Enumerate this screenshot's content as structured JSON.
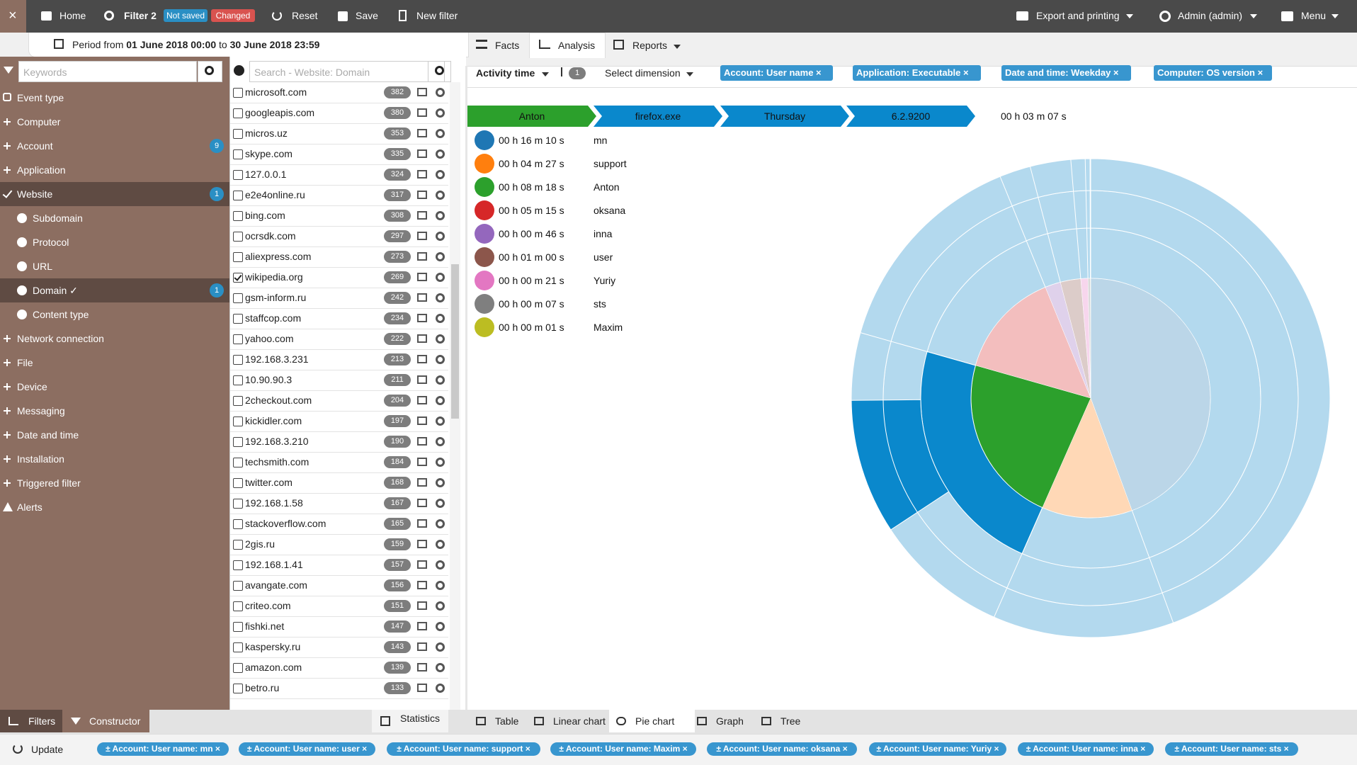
{
  "topbar": {
    "close": "×",
    "home": "Home",
    "filter": "Filter 2",
    "not_saved": "Not saved",
    "changed": "Changed",
    "reset": "Reset",
    "save": "Save",
    "new_filter": "New filter",
    "export": "Export and printing",
    "admin": "Admin (admin)",
    "menu": "Menu"
  },
  "period": {
    "prefix": "Period from",
    "from": "01 June 2018 00:00",
    "to_word": "to",
    "to": "30 June 2018 23:59"
  },
  "tabs": [
    "Facts",
    "Analysis",
    "Reports"
  ],
  "sidebar": {
    "keywords_placeholder": "Keywords",
    "items": [
      {
        "label": "Event type",
        "icon": "hand"
      },
      {
        "label": "Computer",
        "icon": "plus"
      },
      {
        "label": "Account",
        "icon": "plus",
        "count": 9
      },
      {
        "label": "Application",
        "icon": "plus"
      },
      {
        "label": "Website",
        "icon": "check",
        "count": 1,
        "active": true
      },
      {
        "label": "Subdomain",
        "icon": "globe"
      },
      {
        "label": "Protocol",
        "icon": "globe"
      },
      {
        "label": "URL",
        "icon": "globe"
      },
      {
        "label": "Domain ✓",
        "icon": "globe",
        "count": 1,
        "active": true
      },
      {
        "label": "Content type",
        "icon": "globe"
      },
      {
        "label": "Network connection",
        "icon": "plus"
      },
      {
        "label": "File",
        "icon": "plus"
      },
      {
        "label": "Device",
        "icon": "plus"
      },
      {
        "label": "Messaging",
        "icon": "plus"
      },
      {
        "label": "Date and time",
        "icon": "plus"
      },
      {
        "label": "Installation",
        "icon": "plus"
      },
      {
        "label": "Triggered filter",
        "icon": "plus"
      },
      {
        "label": "Alerts",
        "icon": "warning"
      }
    ]
  },
  "domain_list": {
    "placeholder": "Search - Website: Domain",
    "items": [
      {
        "name": "microsoft.com",
        "count": 382
      },
      {
        "name": "googleapis.com",
        "count": 380
      },
      {
        "name": "micros.uz",
        "count": 353
      },
      {
        "name": "skype.com",
        "count": 335
      },
      {
        "name": "127.0.0.1",
        "count": 324
      },
      {
        "name": "e2e4online.ru",
        "count": 317
      },
      {
        "name": "bing.com",
        "count": 308
      },
      {
        "name": "ocrsdk.com",
        "count": 297
      },
      {
        "name": "aliexpress.com",
        "count": 273
      },
      {
        "name": "wikipedia.org",
        "count": 269,
        "checked": true
      },
      {
        "name": "gsm-inform.ru",
        "count": 242
      },
      {
        "name": "staffcop.com",
        "count": 234
      },
      {
        "name": "yahoo.com",
        "count": 222
      },
      {
        "name": "192.168.3.231",
        "count": 213
      },
      {
        "name": "10.90.90.3",
        "count": 211
      },
      {
        "name": "2checkout.com",
        "count": 204
      },
      {
        "name": "kickidler.com",
        "count": 197
      },
      {
        "name": "192.168.3.210",
        "count": 190
      },
      {
        "name": "techsmith.com",
        "count": 184
      },
      {
        "name": "twitter.com",
        "count": 168
      },
      {
        "name": "192.168.1.58",
        "count": 167
      },
      {
        "name": "stackoverflow.com",
        "count": 165
      },
      {
        "name": "2gis.ru",
        "count": 159
      },
      {
        "name": "192.168.1.41",
        "count": 157
      },
      {
        "name": "avangate.com",
        "count": 156
      },
      {
        "name": "criteo.com",
        "count": 151
      },
      {
        "name": "fishki.net",
        "count": 147
      },
      {
        "name": "kaspersky.ru",
        "count": 143
      },
      {
        "name": "amazon.com",
        "count": 139
      },
      {
        "name": "betro.ru",
        "count": 133
      }
    ]
  },
  "toolbar": {
    "sort": "Activity time",
    "sort_count": 1,
    "dimension": "Select dimension",
    "chips": [
      "Account: User name ×",
      "Application: Executable ×",
      "Date and time: Weekday ×",
      "Computer: OS version ×"
    ]
  },
  "breadcrumb": {
    "steps": [
      "Anton",
      "firefox.exe",
      "Thursday",
      "6.2.9200"
    ],
    "total": "00 h 03 m 07 s"
  },
  "chart_data": {
    "type": "pie",
    "categories": [
      "mn",
      "support",
      "Anton",
      "oksana",
      "inna",
      "user",
      "Yuriy",
      "sts",
      "Maxim"
    ],
    "values": [
      970,
      267,
      498,
      315,
      46,
      60,
      21,
      7,
      1
    ],
    "value_labels": [
      "00 h 16 m 10 s",
      "00 h 04 m 27 s",
      "00 h 08 m 18 s",
      "00 h 05 m 15 s",
      "00 h 00 m 46 s",
      "00 h 01 m 00 s",
      "00 h 00 m 21 s",
      "00 h 00 m 07 s",
      "00 h 00 m 01 s"
    ],
    "colors": [
      "#1f77b4",
      "#ff7f0e",
      "#2ca02c",
      "#d62728",
      "#9467bd",
      "#8c564b",
      "#e377c2",
      "#7f7f7f",
      "#bcbd22"
    ],
    "selected_index": 2
  },
  "bottom_tabs": [
    "Filters",
    "Constructor"
  ],
  "statistics": "Statistics",
  "view_tabs": [
    "Table",
    "Linear chart",
    "Pie chart",
    "Graph",
    "Tree"
  ],
  "update": "Update",
  "filter_chips": [
    "± Account: User name: mn ×",
    "± Account: User name: user ×",
    "± Account: User name: support ×",
    "± Account: User name: Maxim ×",
    "± Account: User name: oksana ×",
    "± Account: User name: Yuriy ×",
    "± Account: User name: inna ×",
    "± Account: User name: sts ×"
  ]
}
